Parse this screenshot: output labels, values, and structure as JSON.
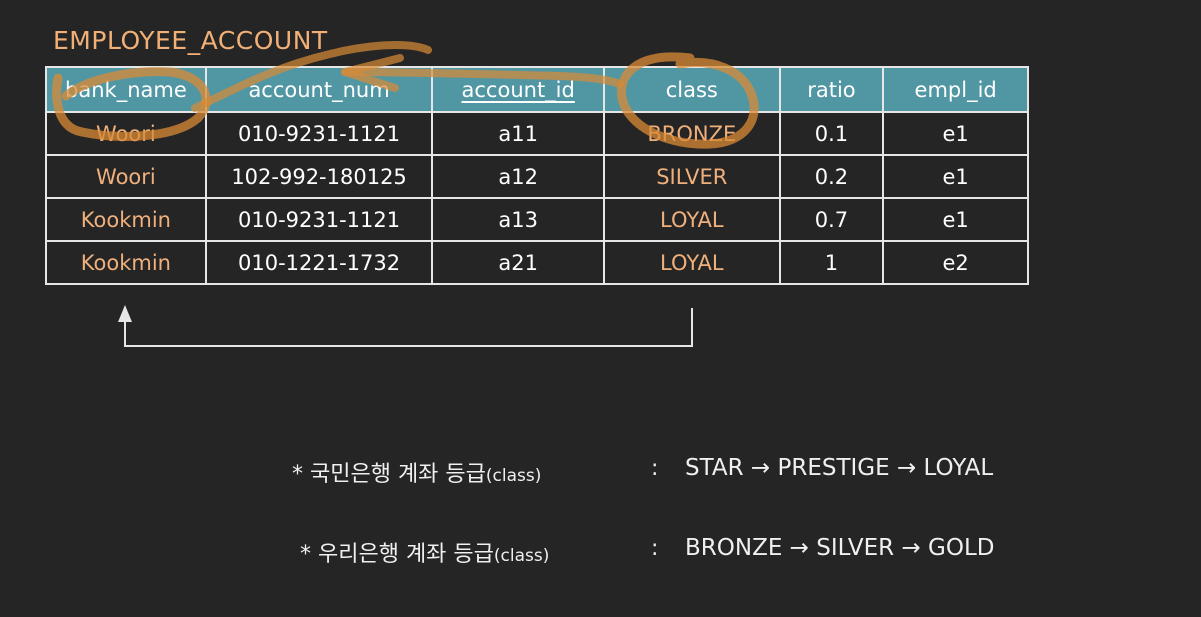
{
  "title": "EMPLOYEE_ACCOUNT",
  "table": {
    "headers": [
      "bank_name",
      "account_num",
      "account_id",
      "class",
      "ratio",
      "empl_id"
    ],
    "rows": [
      [
        "Woori",
        "010-9231-1121",
        "a11",
        "BRONZE",
        "0.1",
        "e1"
      ],
      [
        "Woori",
        "102-992-180125",
        "a12",
        "SILVER",
        "0.2",
        "e1"
      ],
      [
        "Kookmin",
        "010-9231-1121",
        "a13",
        "LOYAL",
        "0.7",
        "e1"
      ],
      [
        "Kookmin",
        "010-1221-1732",
        "a21",
        "LOYAL",
        "1",
        "e2"
      ]
    ]
  },
  "notes": {
    "kookmin": {
      "label": "* 국민은행 계좌 등급",
      "paren": "(class)",
      "colon": ":",
      "sequence": "STAR → PRESTIGE → LOYAL"
    },
    "woori": {
      "label": "* 우리은행 계좌 등급",
      "paren": "(class)",
      "colon": ":",
      "sequence": "BRONZE → SILVER → GOLD"
    }
  },
  "colors": {
    "background": "#252525",
    "header": "#5197a3",
    "accent": "#f0b07c",
    "annotation": "#d98a35"
  }
}
